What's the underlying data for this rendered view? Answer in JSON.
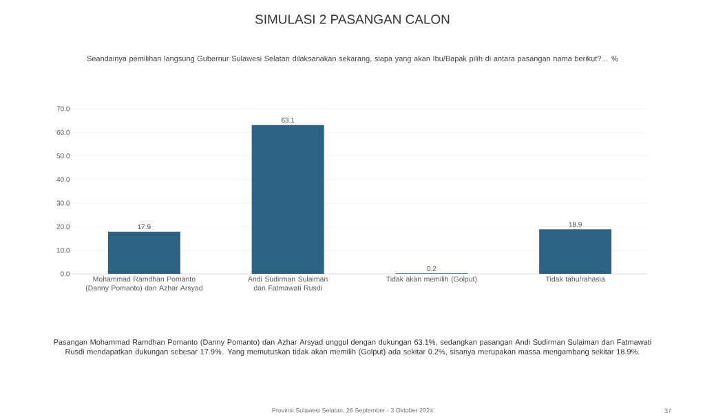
{
  "chart_data": {
    "type": "bar",
    "title": "SIMULASI 2 PASANGAN CALON",
    "subtitle": "Seandainya pemilihan langsung Gubernur Sulawesi Selatan dilaksanakan sekarang, siapa yang akan Ibu/Bapak pilih di antara pasangan nama berikut?... %",
    "categories": [
      "Mohammad Ramdhan Pomanto (Danny Pomanto) dan Azhar Arsyad",
      "Andi Sudirman Sulaiman dan Fatmawati Rusdi",
      "Tidak akan memilih (Golput)",
      "Tidak tahu/rahasia"
    ],
    "values": [
      17.9,
      63.1,
      0.2,
      18.9
    ],
    "color": "#2e6282",
    "ylim": [
      0,
      70
    ],
    "yticks": [
      {
        "value": 0,
        "label": "0.0"
      },
      {
        "value": 10,
        "label": "10.0"
      },
      {
        "value": 20,
        "label": "20.0"
      },
      {
        "value": 30,
        "label": "30.0"
      },
      {
        "value": 40,
        "label": "40.0"
      },
      {
        "value": 50,
        "label": "50.0"
      },
      {
        "value": 60,
        "label": "60.0"
      },
      {
        "value": 70,
        "label": "70.0"
      }
    ],
    "grid": "y",
    "data_labels": true,
    "annotations": [
      "Pasangan Mohammad Ramdhan Pomanto (Danny Pomanto) dan Azhar Arsyad unggul dengan dukungan 63.1%, sedangkan pasangan Andi Sudirman Sulaiman dan Fatmawati Rusdi mendapatkan dukungan sebesar 17.9%. Yang memutuskan tidak akan memilih (Golput) ada sekitar 0.2%, sisanya merupakan massa mengambang sekitar 18.9%.",
      "Provinsi Sulawesi Selatan, 26 September - 3 Oktober 2024",
      "37"
    ]
  }
}
